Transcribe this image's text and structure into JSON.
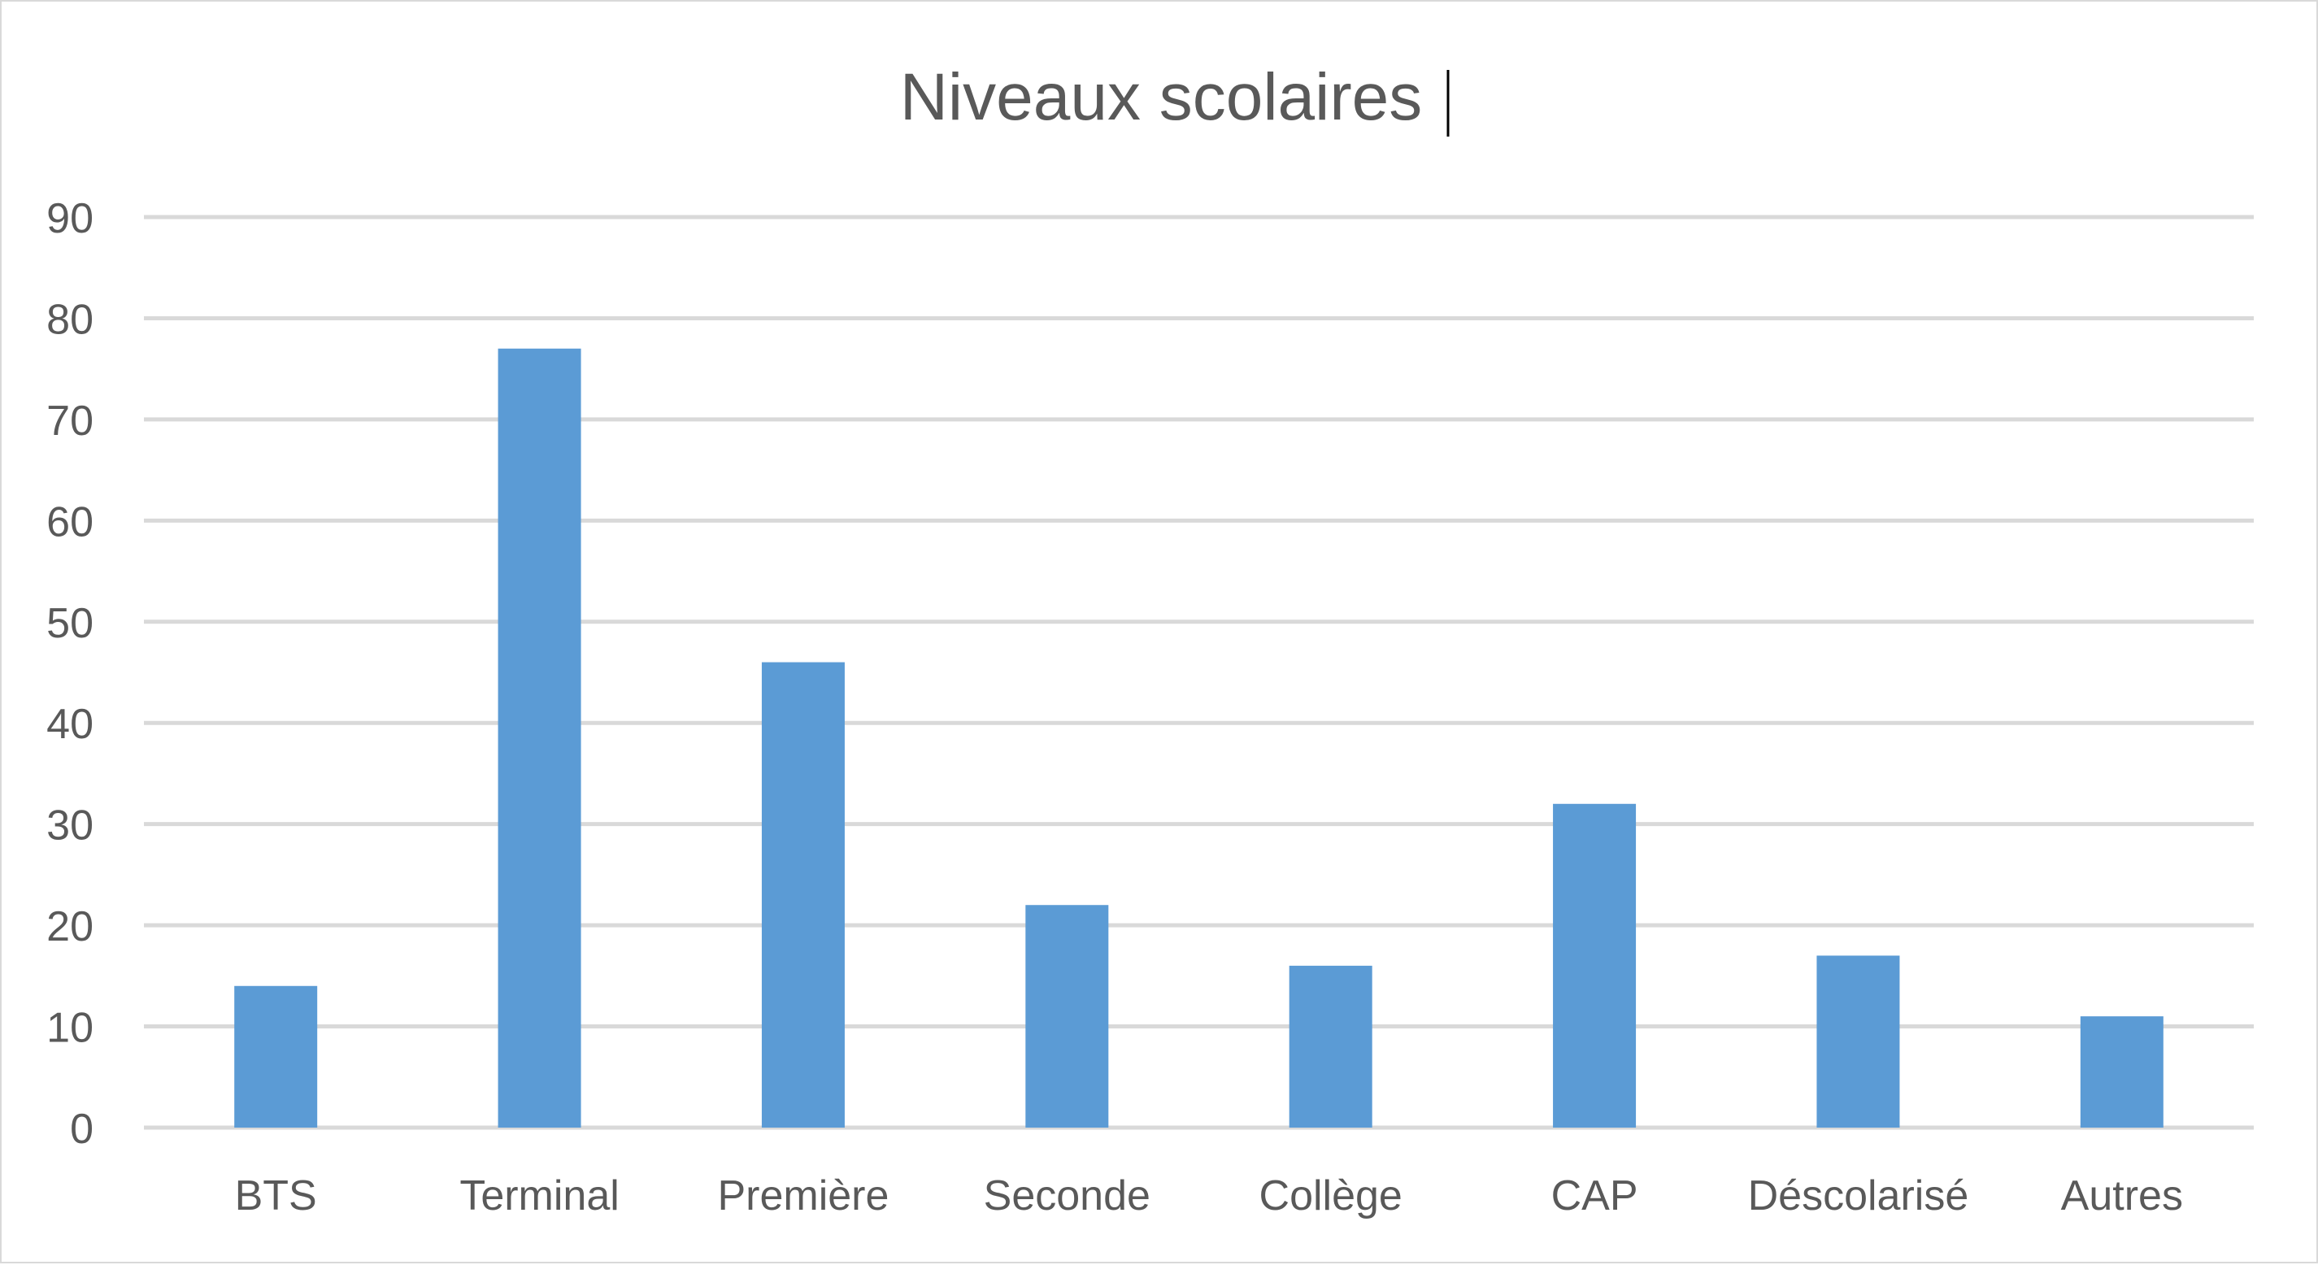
{
  "chart_data": {
    "type": "bar",
    "title": "Niveaux scolaires",
    "xlabel": "",
    "ylabel": "",
    "categories": [
      "BTS",
      "Terminal",
      "Première",
      "Seconde",
      "Collège",
      "CAP",
      "Déscolarisé",
      "Autres"
    ],
    "values": [
      14,
      77,
      46,
      22,
      16,
      32,
      17,
      11
    ],
    "ylim": [
      0,
      90
    ],
    "yticks": [
      "0",
      "10",
      "20",
      "30",
      "40",
      "50",
      "60",
      "70",
      "80",
      "90"
    ],
    "grid": true,
    "legend": "none",
    "colors": {
      "bar": "#5b9bd5",
      "grid": "#d9d9d9",
      "text": "#595959"
    }
  }
}
